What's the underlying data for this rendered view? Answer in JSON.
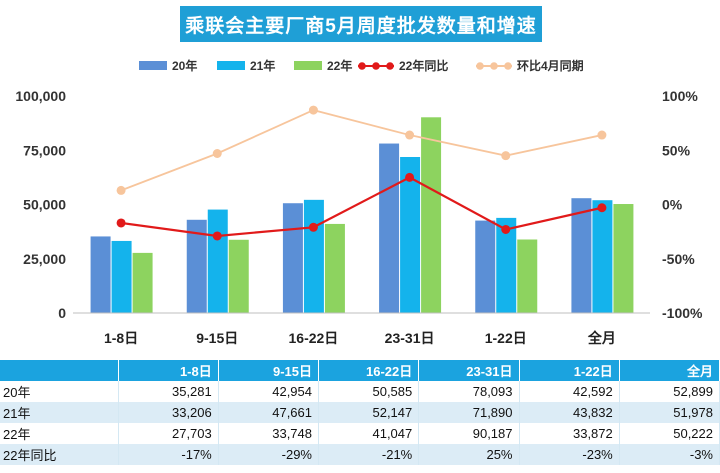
{
  "title": "乘联会主要厂商5月周度批发数量和增速",
  "colors": {
    "s20": "#5b8fd6",
    "s21": "#14b3ec",
    "s22": "#8dd35f",
    "yoy": "#e11a1a",
    "mom": "#f7c59c",
    "header": "#1ba3df"
  },
  "chart_data": {
    "type": "bar",
    "categories": [
      "1-8日",
      "9-15日",
      "16-22日",
      "23-31日",
      "1-22日",
      "全月"
    ],
    "series": [
      {
        "name": "20年",
        "type": "bar",
        "axis": "left",
        "values": [
          35281,
          42954,
          50585,
          78093,
          42592,
          52899
        ]
      },
      {
        "name": "21年",
        "type": "bar",
        "axis": "left",
        "values": [
          33206,
          47661,
          52147,
          71890,
          43832,
          51978
        ]
      },
      {
        "name": "22年",
        "type": "bar",
        "axis": "left",
        "values": [
          27703,
          33748,
          41047,
          90187,
          33872,
          50222
        ]
      },
      {
        "name": "22年同比",
        "type": "line",
        "axis": "right",
        "values": [
          -17,
          -29,
          -21,
          25,
          -23,
          -3
        ]
      },
      {
        "name": "环比4月同期",
        "type": "line",
        "axis": "right",
        "values": [
          13,
          47,
          87,
          64,
          45,
          64
        ]
      }
    ],
    "y_left": {
      "min": 0,
      "max": 100000,
      "ticks": [
        "0",
        "25,000",
        "50,000",
        "75,000",
        "100,000"
      ]
    },
    "y_right": {
      "min": -100,
      "max": 100,
      "ticks": [
        "-100%",
        "-50%",
        "0%",
        "50%",
        "100%"
      ]
    },
    "legend_position": "top"
  },
  "table": {
    "header": [
      "",
      "1-8日",
      "9-15日",
      "16-22日",
      "23-31日",
      "1-22日",
      "全月"
    ],
    "rows": [
      {
        "label": "20年",
        "cells": [
          "35,281",
          "42,954",
          "50,585",
          "78,093",
          "42,592",
          "52,899"
        ]
      },
      {
        "label": "21年",
        "cells": [
          "33,206",
          "47,661",
          "52,147",
          "71,890",
          "43,832",
          "51,978"
        ]
      },
      {
        "label": "22年",
        "cells": [
          "27,703",
          "33,748",
          "41,047",
          "90,187",
          "33,872",
          "50,222"
        ]
      },
      {
        "label": "22年同比",
        "cells": [
          "-17%",
          "-29%",
          "-21%",
          "25%",
          "-23%",
          "-3%"
        ]
      }
    ]
  }
}
